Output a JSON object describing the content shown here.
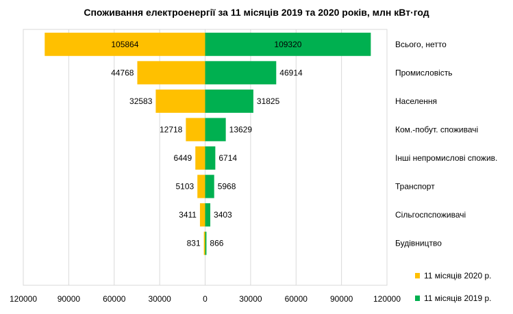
{
  "chart_data": {
    "type": "bar",
    "orientation": "horizontal-butterfly",
    "title": "Споживання електроенергії за 11 місяців 2019 та 2020  років, млн кВт·год",
    "categories": [
      "Будівництво",
      "Сільгоспспоживачі",
      "Транспорт",
      "Інші непромислові спожив.",
      "Ком.-побут. споживачі",
      "Населення",
      "Промисловість",
      "Всього, нетто"
    ],
    "series": [
      {
        "name": "11 місяців 2020 р.",
        "side": "left",
        "color": "#FFC000",
        "values": [
          831,
          3411,
          5103,
          6449,
          12718,
          32583,
          44768,
          105864
        ]
      },
      {
        "name": "11 місяців 2019 р.",
        "side": "right",
        "color": "#00B050",
        "values": [
          866,
          3403,
          5968,
          6714,
          13629,
          31825,
          46914,
          109320
        ]
      }
    ],
    "xlim": [
      -120000,
      120000
    ],
    "x_tick_labels": [
      "120000",
      "90000",
      "60000",
      "30000",
      "0",
      "30000",
      "60000",
      "90000",
      "120000"
    ],
    "grid": true,
    "legend_position": "bottom-right"
  }
}
